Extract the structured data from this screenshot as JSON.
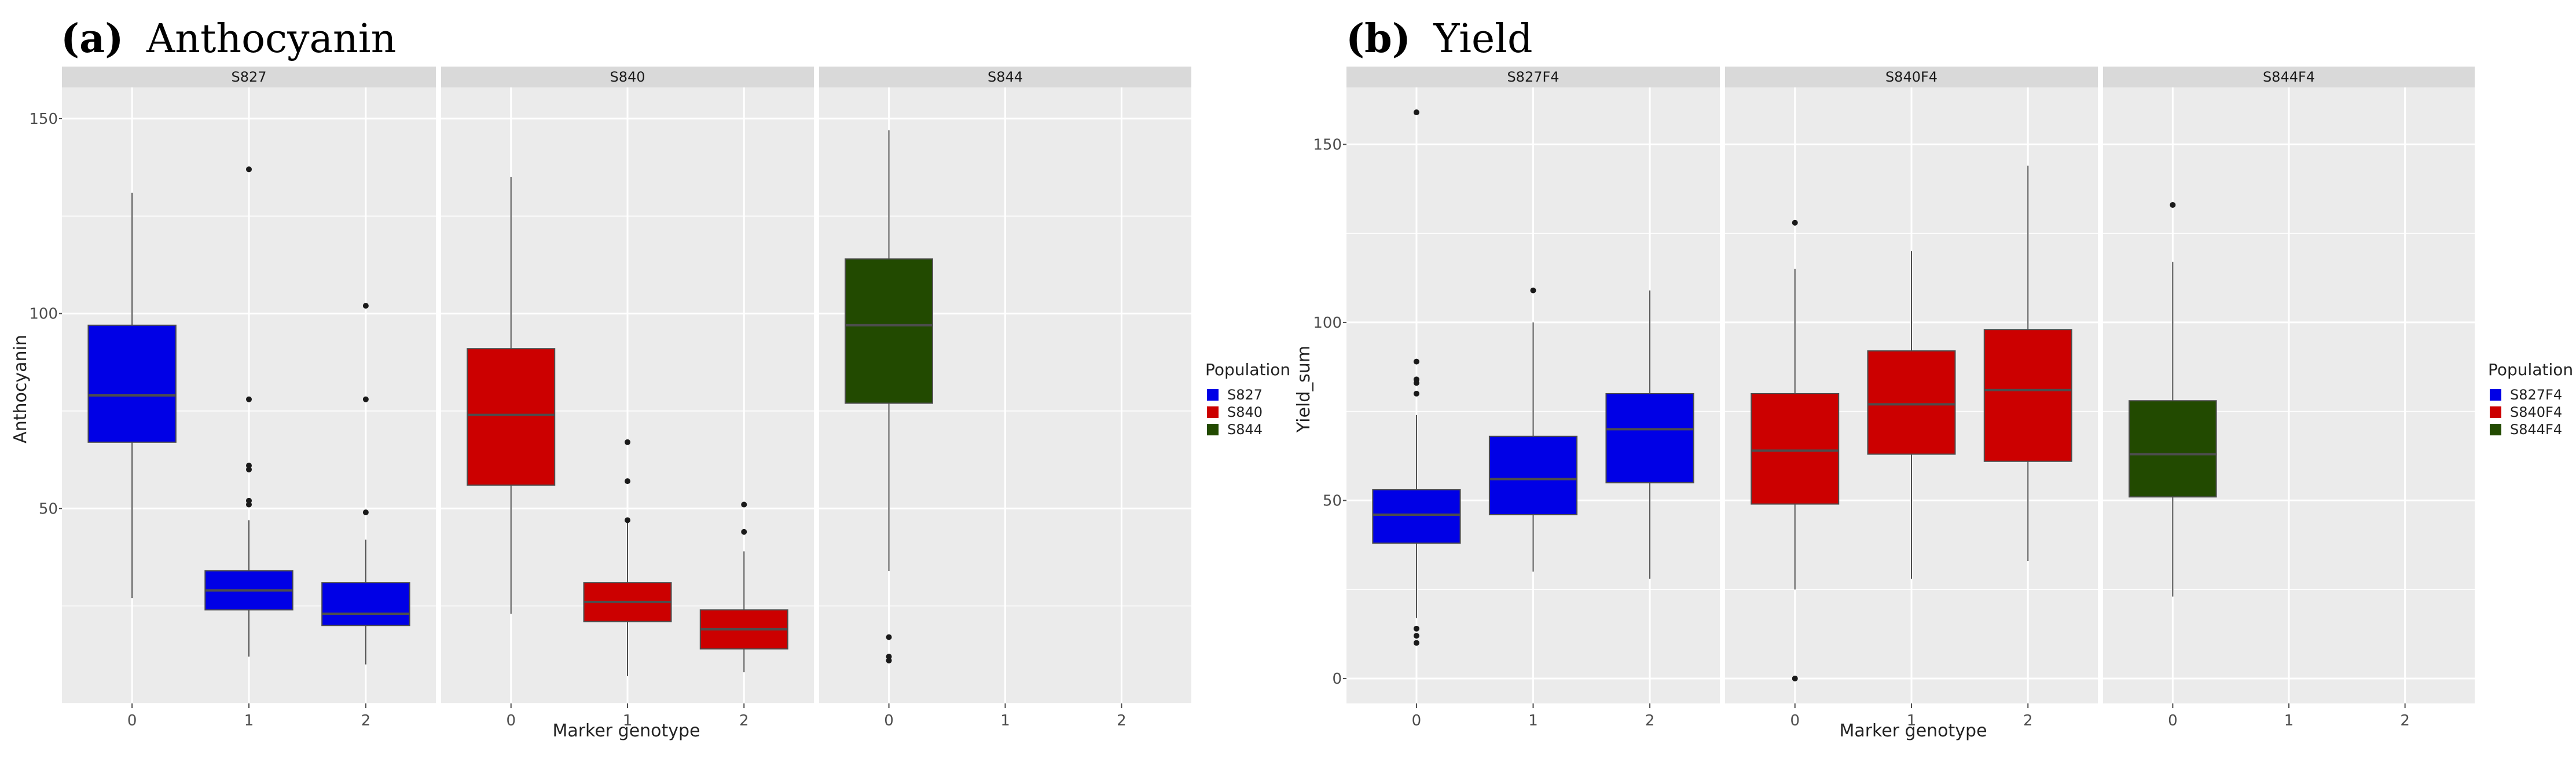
{
  "chart_data": [
    {
      "type": "box",
      "title_tag": "(a)",
      "title": "Anthocyanin",
      "xlabel": "Marker genotype",
      "ylabel": "Anthocyanin",
      "ylim": [
        0,
        158
      ],
      "yticks": [
        50,
        100,
        150
      ],
      "xticks": [
        "0",
        "1",
        "2"
      ],
      "legend": {
        "title": "Population",
        "placement": "right",
        "entries": [
          {
            "name": "S827",
            "color": "#0000e6"
          },
          {
            "name": "S840",
            "color": "#cc0000"
          },
          {
            "name": "S844",
            "color": "#224a00"
          }
        ]
      },
      "facets": [
        {
          "label": "S827",
          "color": "#0000e6",
          "boxes": [
            {
              "x": "0",
              "min": 27,
              "q1": 67,
              "median": 79,
              "q3": 97,
              "max": 131,
              "outliers": []
            },
            {
              "x": "1",
              "min": 12,
              "q1": 24,
              "median": 29,
              "q3": 34,
              "max": 47,
              "outliers": [
                137,
                78,
                61,
                60,
                52,
                51
              ]
            },
            {
              "x": "2",
              "min": 10,
              "q1": 20,
              "median": 23,
              "q3": 31,
              "max": 42,
              "outliers": [
                102,
                78,
                49
              ]
            }
          ]
        },
        {
          "label": "S840",
          "color": "#cc0000",
          "boxes": [
            {
              "x": "0",
              "min": 23,
              "q1": 56,
              "median": 74,
              "q3": 91,
              "max": 135,
              "outliers": []
            },
            {
              "x": "1",
              "min": 7,
              "q1": 21,
              "median": 26,
              "q3": 31,
              "max": 47,
              "outliers": [
                67,
                57,
                47
              ]
            },
            {
              "x": "2",
              "min": 8,
              "q1": 14,
              "median": 19,
              "q3": 24,
              "max": 39,
              "outliers": [
                51,
                44
              ]
            }
          ]
        },
        {
          "label": "S844",
          "color": "#224a00",
          "boxes": [
            {
              "x": "0",
              "min": 34,
              "q1": 77,
              "median": 97,
              "q3": 114,
              "max": 147,
              "outliers": [
                17,
                12,
                11
              ]
            }
          ]
        }
      ]
    },
    {
      "type": "box",
      "title_tag": "(b)",
      "title": "Yield",
      "xlabel": "Marker genotype",
      "ylabel": "Yield_sum",
      "ylim": [
        -7,
        166
      ],
      "yticks": [
        0,
        50,
        100,
        150
      ],
      "xticks": [
        "0",
        "1",
        "2"
      ],
      "legend": {
        "title": "Population",
        "placement": "right",
        "entries": [
          {
            "name": "S827F4",
            "color": "#0000e6"
          },
          {
            "name": "S840F4",
            "color": "#cc0000"
          },
          {
            "name": "S844F4",
            "color": "#224a00"
          }
        ]
      },
      "facets": [
        {
          "label": "S827F4",
          "color": "#0000e6",
          "boxes": [
            {
              "x": "0",
              "min": 17,
              "q1": 38,
              "median": 46,
              "q3": 53,
              "max": 74,
              "outliers": [
                159,
                89,
                84,
                83,
                80,
                14,
                12,
                10
              ]
            },
            {
              "x": "1",
              "min": 30,
              "q1": 46,
              "median": 56,
              "q3": 68,
              "max": 100,
              "outliers": [
                109
              ]
            },
            {
              "x": "2",
              "min": 28,
              "q1": 55,
              "median": 70,
              "q3": 80,
              "max": 109,
              "outliers": []
            }
          ]
        },
        {
          "label": "S840F4",
          "color": "#cc0000",
          "boxes": [
            {
              "x": "0",
              "min": 25,
              "q1": 49,
              "median": 64,
              "q3": 80,
              "max": 115,
              "outliers": [
                128,
                0
              ]
            },
            {
              "x": "1",
              "min": 28,
              "q1": 63,
              "median": 77,
              "q3": 92,
              "max": 120,
              "outliers": []
            },
            {
              "x": "2",
              "min": 33,
              "q1": 61,
              "median": 81,
              "q3": 98,
              "max": 144,
              "outliers": []
            }
          ]
        },
        {
          "label": "S844F4",
          "color": "#224a00",
          "boxes": [
            {
              "x": "0",
              "min": 23,
              "q1": 51,
              "median": 63,
              "q3": 78,
              "max": 117,
              "outliers": [
                133
              ]
            }
          ]
        }
      ]
    }
  ]
}
